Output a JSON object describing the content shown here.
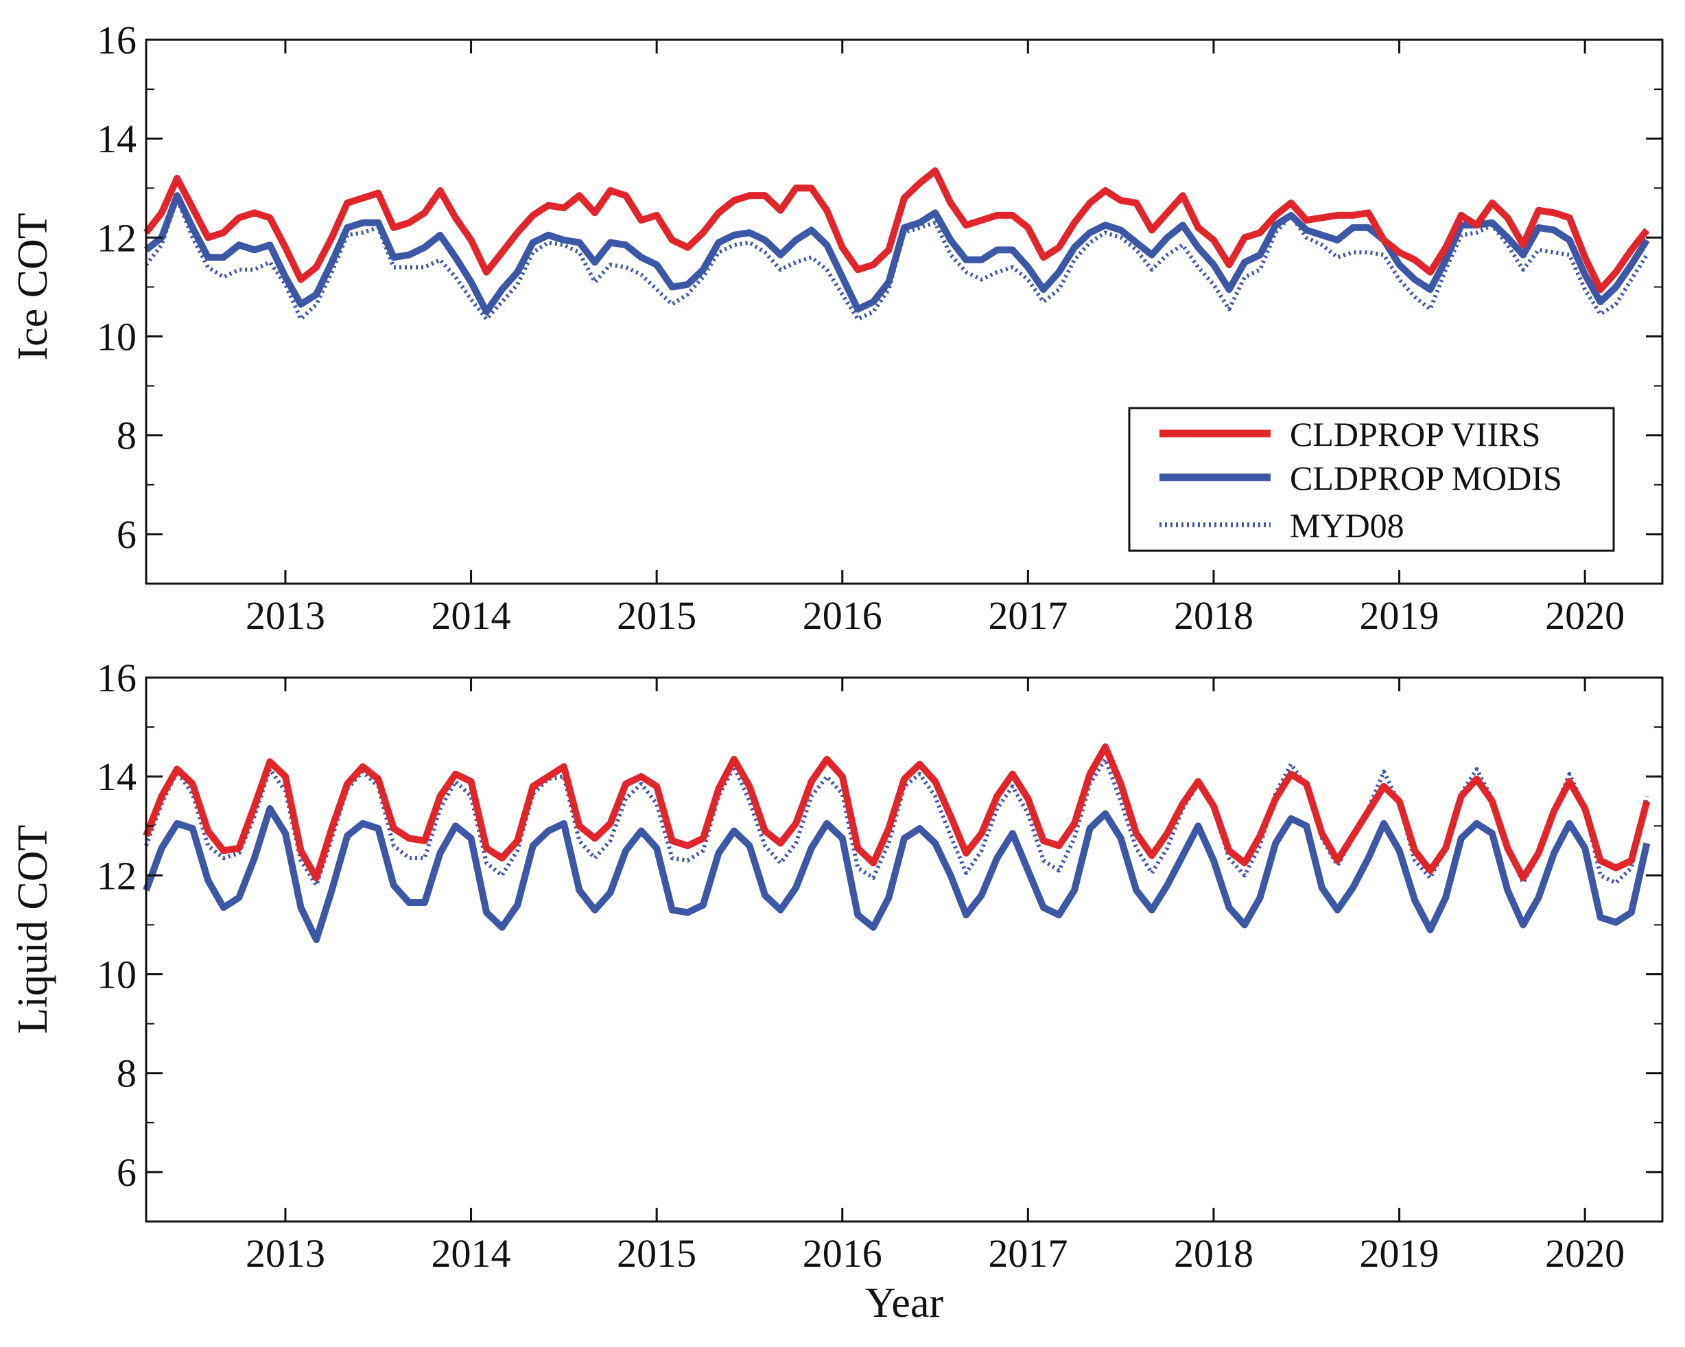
{
  "figure": {
    "xlabel": "Year",
    "colors": {
      "viirs": "#e0252b",
      "modis": "#3d56a6",
      "myd08": "#3d56a6"
    }
  },
  "legend": {
    "items": [
      {
        "name": "CLDPROP VIIRS",
        "style": "solid",
        "color": "#e0252b"
      },
      {
        "name": "CLDPROP MODIS",
        "style": "solid",
        "color": "#3d56a6"
      },
      {
        "name": "MYD08",
        "style": "dotted",
        "color": "#3d56a6"
      }
    ],
    "placement": "lower-right of top panel"
  },
  "chart_data": [
    {
      "type": "line",
      "panel": "top",
      "ylabel": "Ice COT",
      "xlabel": "",
      "xlim": [
        2012.25,
        2020.417
      ],
      "ylim": [
        5,
        16
      ],
      "xticks": [
        2013,
        2014,
        2015,
        2016,
        2017,
        2018,
        2019,
        2020
      ],
      "xtick_labels": [
        "2013",
        "2014",
        "2015",
        "2016",
        "2017",
        "2018",
        "2019",
        "2020"
      ],
      "yticks": [
        6,
        8,
        10,
        12,
        14,
        16
      ],
      "ytick_labels": [
        "6",
        "8",
        "10",
        "12",
        "14",
        "16"
      ],
      "x_start": 2012.25,
      "x_step_months": 1,
      "series": [
        {
          "name": "CLDPROP VIIRS",
          "values": [
            12.1,
            12.5,
            13.2,
            12.6,
            12.0,
            12.1,
            12.4,
            12.5,
            12.4,
            11.8,
            11.15,
            11.4,
            12.0,
            12.7,
            12.8,
            12.9,
            12.2,
            12.3,
            12.5,
            12.95,
            12.4,
            11.95,
            11.3,
            11.7,
            12.1,
            12.45,
            12.65,
            12.6,
            12.85,
            12.5,
            12.95,
            12.85,
            12.35,
            12.45,
            11.95,
            11.8,
            12.1,
            12.5,
            12.75,
            12.85,
            12.85,
            12.55,
            13.0,
            13.0,
            12.55,
            11.8,
            11.35,
            11.45,
            11.75,
            12.8,
            13.1,
            13.35,
            12.7,
            12.25,
            12.35,
            12.45,
            12.45,
            12.2,
            11.6,
            11.8,
            12.3,
            12.7,
            12.95,
            12.75,
            12.7,
            12.15,
            12.5,
            12.85,
            12.2,
            11.95,
            11.45,
            12.0,
            12.1,
            12.45,
            12.7,
            12.35,
            12.4,
            12.45,
            12.45,
            12.5,
            11.95,
            11.7,
            11.55,
            11.3,
            11.8,
            12.45,
            12.25,
            12.7,
            12.4,
            11.85,
            12.55,
            12.5,
            12.4,
            11.6,
            10.95,
            11.3,
            11.75,
            12.15
          ]
        },
        {
          "name": "CLDPROP MODIS",
          "values": [
            11.75,
            12.0,
            12.85,
            12.2,
            11.6,
            11.6,
            11.85,
            11.75,
            11.85,
            11.2,
            10.65,
            10.85,
            11.5,
            12.2,
            12.3,
            12.3,
            11.6,
            11.65,
            11.8,
            12.05,
            11.6,
            11.1,
            10.5,
            10.95,
            11.3,
            11.9,
            12.05,
            11.95,
            11.9,
            11.5,
            11.9,
            11.85,
            11.6,
            11.45,
            11.0,
            11.05,
            11.35,
            11.9,
            12.05,
            12.1,
            11.95,
            11.65,
            11.95,
            12.15,
            11.85,
            11.2,
            10.55,
            10.7,
            11.1,
            12.2,
            12.3,
            12.5,
            11.95,
            11.55,
            11.55,
            11.75,
            11.75,
            11.4,
            10.95,
            11.3,
            11.8,
            12.1,
            12.25,
            12.15,
            11.9,
            11.65,
            12.0,
            12.25,
            11.8,
            11.45,
            10.95,
            11.5,
            11.65,
            12.25,
            12.45,
            12.15,
            12.05,
            11.95,
            12.2,
            12.2,
            11.95,
            11.45,
            11.15,
            10.95,
            11.55,
            12.25,
            12.25,
            12.3,
            12.0,
            11.65,
            12.2,
            12.15,
            11.95,
            11.25,
            10.7,
            11.0,
            11.45,
            11.95
          ]
        },
        {
          "name": "MYD08",
          "values": [
            11.45,
            11.85,
            12.8,
            12.0,
            11.4,
            11.2,
            11.35,
            11.35,
            11.5,
            11.05,
            10.35,
            10.65,
            11.3,
            12.05,
            12.1,
            12.2,
            11.4,
            11.4,
            11.4,
            11.55,
            11.2,
            10.75,
            10.35,
            10.7,
            11.05,
            11.7,
            11.9,
            11.85,
            11.7,
            11.1,
            11.45,
            11.4,
            11.25,
            10.95,
            10.65,
            10.85,
            11.2,
            11.7,
            11.85,
            11.9,
            11.7,
            11.35,
            11.5,
            11.6,
            11.35,
            10.85,
            10.35,
            10.5,
            10.95,
            12.1,
            12.2,
            12.3,
            11.65,
            11.3,
            11.15,
            11.3,
            11.4,
            11.15,
            10.7,
            10.95,
            11.55,
            11.9,
            12.1,
            12.0,
            11.75,
            11.35,
            11.65,
            11.85,
            11.4,
            11.05,
            10.55,
            11.2,
            11.35,
            12.1,
            12.45,
            12.0,
            11.85,
            11.6,
            11.7,
            11.7,
            11.65,
            11.15,
            10.8,
            10.55,
            11.35,
            12.05,
            12.1,
            12.25,
            11.85,
            11.35,
            11.75,
            11.7,
            11.65,
            10.95,
            10.45,
            10.65,
            11.15,
            11.65
          ]
        }
      ]
    },
    {
      "type": "line",
      "panel": "bottom",
      "ylabel": "Liquid COT",
      "xlabel": "Year",
      "xlim": [
        2012.25,
        2020.417
      ],
      "ylim": [
        5,
        16
      ],
      "xticks": [
        2013,
        2014,
        2015,
        2016,
        2017,
        2018,
        2019,
        2020
      ],
      "xtick_labels": [
        "2013",
        "2014",
        "2015",
        "2016",
        "2017",
        "2018",
        "2019",
        "2020"
      ],
      "yticks": [
        6,
        8,
        10,
        12,
        14,
        16
      ],
      "ytick_labels": [
        "6",
        "8",
        "10",
        "12",
        "14",
        "16"
      ],
      "x_start": 2012.25,
      "x_step_months": 1,
      "series": [
        {
          "name": "CLDPROP VIIRS",
          "values": [
            12.8,
            13.6,
            14.15,
            13.85,
            12.9,
            12.5,
            12.55,
            13.4,
            14.3,
            14.0,
            12.5,
            11.95,
            12.95,
            13.85,
            14.2,
            13.95,
            12.95,
            12.75,
            12.7,
            13.6,
            14.05,
            13.9,
            12.55,
            12.35,
            12.7,
            13.8,
            14.0,
            14.2,
            13.0,
            12.75,
            13.05,
            13.85,
            14.0,
            13.8,
            12.7,
            12.6,
            12.75,
            13.75,
            14.35,
            13.8,
            12.9,
            12.65,
            13.05,
            13.9,
            14.35,
            14.0,
            12.55,
            12.25,
            12.95,
            13.95,
            14.25,
            13.9,
            13.2,
            12.45,
            12.85,
            13.6,
            14.05,
            13.55,
            12.7,
            12.6,
            13.05,
            14.05,
            14.6,
            13.85,
            12.85,
            12.4,
            12.85,
            13.45,
            13.9,
            13.4,
            12.5,
            12.25,
            12.8,
            13.55,
            14.05,
            13.85,
            12.85,
            12.3,
            12.8,
            13.3,
            13.8,
            13.5,
            12.5,
            12.1,
            12.55,
            13.6,
            13.95,
            13.5,
            12.55,
            11.95,
            12.45,
            13.3,
            13.9,
            13.35,
            12.3,
            12.15,
            12.3,
            13.5
          ]
        },
        {
          "name": "CLDPROP MODIS",
          "values": [
            11.7,
            12.55,
            13.05,
            12.95,
            11.9,
            11.35,
            11.55,
            12.35,
            13.35,
            12.85,
            11.35,
            10.7,
            11.7,
            12.8,
            13.05,
            12.95,
            11.8,
            11.45,
            11.45,
            12.45,
            13.0,
            12.75,
            11.25,
            10.95,
            11.4,
            12.6,
            12.9,
            13.05,
            11.7,
            11.3,
            11.65,
            12.5,
            12.9,
            12.55,
            11.3,
            11.25,
            11.4,
            12.45,
            12.9,
            12.6,
            11.6,
            11.3,
            11.75,
            12.55,
            13.05,
            12.75,
            11.2,
            10.95,
            11.55,
            12.75,
            12.95,
            12.65,
            12.0,
            11.2,
            11.6,
            12.35,
            12.85,
            12.1,
            11.35,
            11.2,
            11.7,
            12.95,
            13.25,
            12.75,
            11.7,
            11.3,
            11.8,
            12.4,
            13.0,
            12.3,
            11.35,
            11.0,
            11.55,
            12.65,
            13.15,
            13.0,
            11.75,
            11.3,
            11.75,
            12.35,
            13.05,
            12.5,
            11.5,
            10.9,
            11.55,
            12.75,
            13.05,
            12.85,
            11.7,
            11.0,
            11.55,
            12.45,
            13.05,
            12.55,
            11.15,
            11.05,
            11.25,
            12.65
          ]
        },
        {
          "name": "MYD08",
          "values": [
            12.6,
            13.45,
            14.1,
            13.65,
            12.6,
            12.35,
            12.45,
            13.2,
            14.15,
            13.7,
            12.3,
            11.8,
            12.75,
            13.75,
            14.1,
            13.8,
            12.6,
            12.35,
            12.35,
            13.35,
            13.9,
            13.6,
            12.25,
            12.0,
            12.5,
            13.65,
            13.95,
            14.0,
            12.7,
            12.35,
            12.7,
            13.55,
            13.85,
            13.45,
            12.35,
            12.3,
            12.5,
            13.6,
            14.2,
            13.5,
            12.6,
            12.25,
            12.65,
            13.6,
            14.0,
            13.65,
            12.15,
            11.95,
            12.65,
            13.8,
            14.05,
            13.6,
            12.8,
            12.05,
            12.5,
            13.35,
            13.8,
            13.25,
            12.3,
            12.1,
            12.75,
            13.85,
            14.35,
            13.5,
            12.55,
            12.05,
            12.55,
            13.35,
            13.85,
            13.35,
            12.35,
            12.0,
            12.6,
            13.65,
            14.25,
            13.8,
            12.75,
            12.2,
            12.75,
            13.35,
            14.1,
            13.45,
            12.3,
            11.95,
            12.55,
            13.65,
            14.15,
            13.55,
            12.55,
            11.85,
            12.4,
            13.3,
            14.05,
            13.35,
            12.0,
            11.85,
            12.15,
            13.6
          ]
        }
      ]
    }
  ]
}
